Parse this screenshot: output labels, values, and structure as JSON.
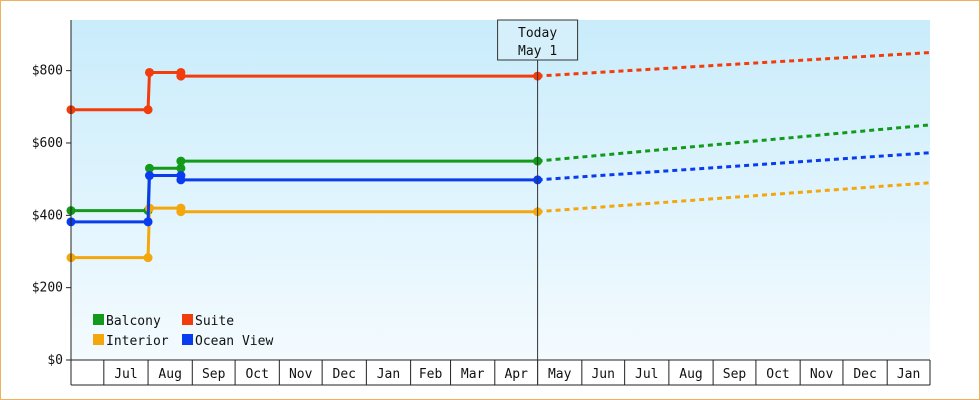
{
  "chart_data": {
    "type": "line",
    "today_marker": {
      "line1": "Today",
      "line2": "May 1"
    },
    "y_ticks": [
      {
        "value": 0,
        "label": "$0"
      },
      {
        "value": 200,
        "label": "$200"
      },
      {
        "value": 400,
        "label": "$400"
      },
      {
        "value": 600,
        "label": "$600"
      },
      {
        "value": 800,
        "label": "$800"
      }
    ],
    "ylim": [
      0,
      940
    ],
    "x_tick_labels": [
      "Jul",
      "Aug",
      "Sep",
      "Oct",
      "Nov",
      "Dec",
      "Jan",
      "Feb",
      "Mar",
      "Apr",
      "May",
      "Jun",
      "Jul",
      "Aug",
      "Sep",
      "Oct",
      "Nov",
      "Dec",
      "Jan"
    ],
    "x_domain": [
      "2024-06-08",
      "2026-01-31"
    ],
    "today": "2025-05-01",
    "legend": [
      {
        "name": "Balcony",
        "color": "#139a1a"
      },
      {
        "name": "Suite",
        "color": "#f23c0c"
      },
      {
        "name": "Interior",
        "color": "#f4a60d"
      },
      {
        "name": "Ocean View",
        "color": "#0a3cef"
      }
    ],
    "series": [
      {
        "name": "Balcony",
        "color": "#139a1a",
        "actual": [
          {
            "x": "2024-06-08",
            "y": 413
          },
          {
            "x": "2024-08-01",
            "y": 413
          },
          {
            "x": "2024-08-02",
            "y": 530
          },
          {
            "x": "2024-08-24",
            "y": 530
          },
          {
            "x": "2024-08-24",
            "y": 550
          },
          {
            "x": "2025-05-01",
            "y": 550
          }
        ],
        "markers": [
          {
            "x": "2024-06-08",
            "y": 413
          },
          {
            "x": "2024-08-01",
            "y": 413
          },
          {
            "x": "2024-08-02",
            "y": 530
          },
          {
            "x": "2024-08-24",
            "y": 530
          },
          {
            "x": "2024-08-24",
            "y": 550
          },
          {
            "x": "2025-05-01",
            "y": 550
          }
        ],
        "forecast": [
          {
            "x": "2025-05-01",
            "y": 550
          },
          {
            "x": "2026-01-31",
            "y": 650
          }
        ]
      },
      {
        "name": "Suite",
        "color": "#f23c0c",
        "actual": [
          {
            "x": "2024-06-08",
            "y": 692
          },
          {
            "x": "2024-08-01",
            "y": 692
          },
          {
            "x": "2024-08-02",
            "y": 795
          },
          {
            "x": "2024-08-24",
            "y": 795
          },
          {
            "x": "2024-08-24",
            "y": 785
          },
          {
            "x": "2025-05-01",
            "y": 785
          }
        ],
        "markers": [
          {
            "x": "2024-06-08",
            "y": 692
          },
          {
            "x": "2024-08-01",
            "y": 692
          },
          {
            "x": "2024-08-02",
            "y": 795
          },
          {
            "x": "2024-08-24",
            "y": 795
          },
          {
            "x": "2024-08-24",
            "y": 785
          },
          {
            "x": "2025-05-01",
            "y": 785
          }
        ],
        "forecast": [
          {
            "x": "2025-05-01",
            "y": 785
          },
          {
            "x": "2026-01-31",
            "y": 850
          }
        ]
      },
      {
        "name": "Interior",
        "color": "#f4a60d",
        "actual": [
          {
            "x": "2024-06-08",
            "y": 283
          },
          {
            "x": "2024-08-01",
            "y": 283
          },
          {
            "x": "2024-08-02",
            "y": 420
          },
          {
            "x": "2024-08-24",
            "y": 420
          },
          {
            "x": "2024-08-24",
            "y": 410
          },
          {
            "x": "2025-05-01",
            "y": 410
          }
        ],
        "markers": [
          {
            "x": "2024-06-08",
            "y": 283
          },
          {
            "x": "2024-08-01",
            "y": 283
          },
          {
            "x": "2024-08-02",
            "y": 420
          },
          {
            "x": "2024-08-24",
            "y": 420
          },
          {
            "x": "2024-08-24",
            "y": 410
          },
          {
            "x": "2025-05-01",
            "y": 410
          }
        ],
        "forecast": [
          {
            "x": "2025-05-01",
            "y": 410
          },
          {
            "x": "2026-01-31",
            "y": 490
          }
        ]
      },
      {
        "name": "Ocean View",
        "color": "#0a3cef",
        "actual": [
          {
            "x": "2024-06-08",
            "y": 382
          },
          {
            "x": "2024-08-01",
            "y": 382
          },
          {
            "x": "2024-08-02",
            "y": 510
          },
          {
            "x": "2024-08-24",
            "y": 510
          },
          {
            "x": "2024-08-24",
            "y": 498
          },
          {
            "x": "2025-05-01",
            "y": 498
          }
        ],
        "markers": [
          {
            "x": "2024-06-08",
            "y": 382
          },
          {
            "x": "2024-08-01",
            "y": 382
          },
          {
            "x": "2024-08-02",
            "y": 510
          },
          {
            "x": "2024-08-24",
            "y": 510
          },
          {
            "x": "2024-08-24",
            "y": 498
          },
          {
            "x": "2025-05-01",
            "y": 498
          }
        ],
        "forecast": [
          {
            "x": "2025-05-01",
            "y": 498
          },
          {
            "x": "2026-01-31",
            "y": 573
          }
        ]
      }
    ]
  }
}
